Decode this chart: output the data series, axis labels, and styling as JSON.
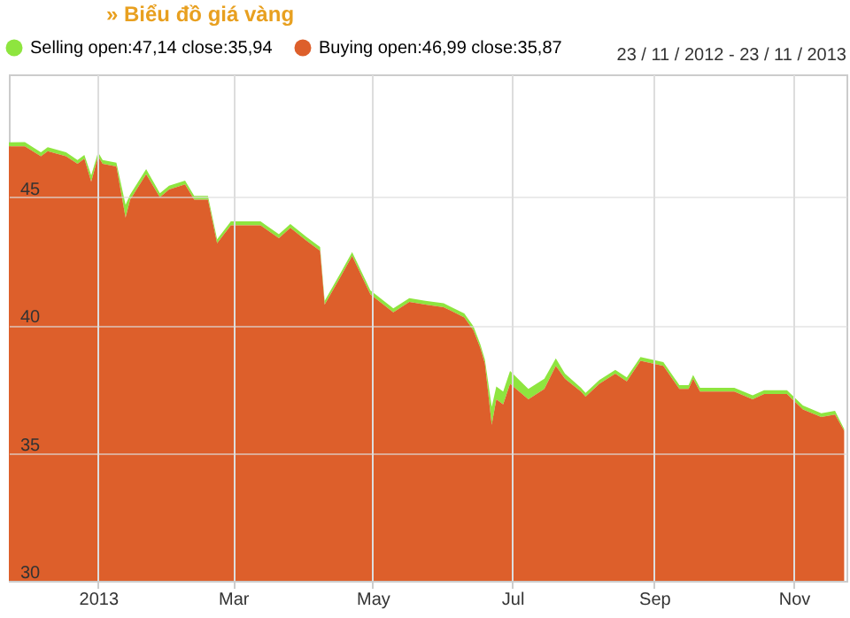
{
  "chart_data": {
    "type": "area",
    "title": "» Biểu đồ giá vàng",
    "annotations": [
      "23 / 11 / 2012 - 23 / 11 / 2013"
    ],
    "x": [
      "2012-11-23",
      "2012-11-30",
      "2012-12-07",
      "2012-12-10",
      "2012-12-18",
      "2012-12-23",
      "2012-12-26",
      "2012-12-29",
      "2013-01-01",
      "2013-01-03",
      "2013-01-09",
      "2013-01-13",
      "2013-01-15",
      "2013-01-22",
      "2013-01-28",
      "2013-02-01",
      "2013-02-08",
      "2013-02-12",
      "2013-02-18",
      "2013-02-22",
      "2013-02-28",
      "2013-03-13",
      "2013-03-21",
      "2013-03-26",
      "2013-04-02",
      "2013-04-08",
      "2013-04-10",
      "2013-04-17",
      "2013-04-22",
      "2013-04-30",
      "2013-05-10",
      "2013-05-17",
      "2013-05-24",
      "2013-06-01",
      "2013-06-10",
      "2013-06-14",
      "2013-06-17",
      "2013-06-19",
      "2013-06-22",
      "2013-06-24",
      "2013-06-27",
      "2013-06-30",
      "2013-07-08",
      "2013-07-15",
      "2013-07-20",
      "2013-07-24",
      "2013-07-31",
      "2013-08-02",
      "2013-08-08",
      "2013-08-15",
      "2013-08-20",
      "2013-08-26",
      "2013-09-05",
      "2013-09-12",
      "2013-09-16",
      "2013-09-18",
      "2013-09-21",
      "2013-10-06",
      "2013-10-14",
      "2013-10-19",
      "2013-10-29",
      "2013-11-05",
      "2013-11-13",
      "2013-11-19",
      "2013-11-23"
    ],
    "series": [
      {
        "name": "Selling open:47,14 close:35,94",
        "color": "#8ee53f",
        "values": [
          47.14,
          47.15,
          46.75,
          46.95,
          46.75,
          46.45,
          46.65,
          45.85,
          46.75,
          46.45,
          46.35,
          44.7,
          45.1,
          46.1,
          45.15,
          45.45,
          45.65,
          45.05,
          45.05,
          43.35,
          44.05,
          44.05,
          43.55,
          43.95,
          43.45,
          43.05,
          40.95,
          42.05,
          42.85,
          41.35,
          40.65,
          41.05,
          40.95,
          40.85,
          40.45,
          39.95,
          39.25,
          38.65,
          36.8,
          37.6,
          37.4,
          38.2,
          37.5,
          37.9,
          38.7,
          38.1,
          37.55,
          37.35,
          37.85,
          38.25,
          37.95,
          38.75,
          38.55,
          37.65,
          37.65,
          38.05,
          37.55,
          37.55,
          37.25,
          37.45,
          37.45,
          36.85,
          36.55,
          36.65,
          35.94
        ]
      },
      {
        "name": "Buying open:46,99 close:35,87",
        "color": "#dd5f2b",
        "values": [
          46.99,
          46.99,
          46.6,
          46.8,
          46.6,
          46.3,
          46.5,
          45.6,
          46.6,
          46.3,
          46.2,
          44.2,
          44.9,
          45.9,
          45.0,
          45.3,
          45.5,
          44.9,
          44.9,
          43.2,
          43.9,
          43.9,
          43.4,
          43.8,
          43.3,
          42.9,
          40.8,
          41.9,
          42.7,
          41.2,
          40.5,
          40.9,
          40.8,
          40.7,
          40.3,
          39.8,
          39.1,
          38.5,
          36.1,
          37.1,
          36.9,
          37.7,
          37.1,
          37.5,
          38.4,
          37.9,
          37.4,
          37.2,
          37.7,
          38.1,
          37.8,
          38.6,
          38.4,
          37.5,
          37.5,
          37.9,
          37.4,
          37.4,
          37.1,
          37.3,
          37.3,
          36.7,
          36.4,
          36.5,
          35.87
        ]
      }
    ],
    "xlim": [
      "2012-11-23",
      "2013-11-24"
    ],
    "xticks": [
      {
        "value": "2013-01-01",
        "label": "2013"
      },
      {
        "value": "2013-03-01",
        "label": "Mar"
      },
      {
        "value": "2013-05-01",
        "label": "May"
      },
      {
        "value": "2013-07-01",
        "label": "Jul"
      },
      {
        "value": "2013-09-01",
        "label": "Sep"
      },
      {
        "value": "2013-11-01",
        "label": "Nov"
      }
    ],
    "ylim": [
      30,
      49.8
    ],
    "yticks": [
      30,
      35,
      40,
      45
    ],
    "grid": true,
    "legend": "top left"
  }
}
